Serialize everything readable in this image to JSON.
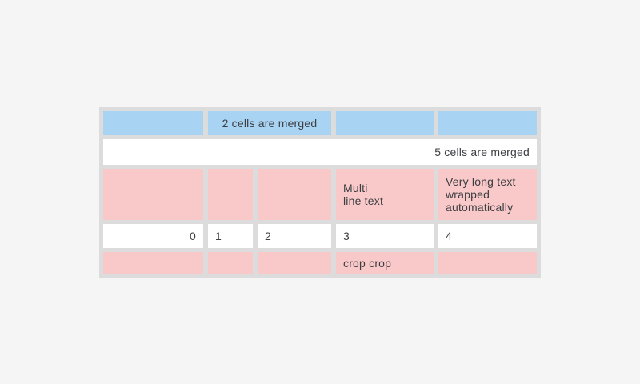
{
  "colors": {
    "page-bg": "#f5f5f5",
    "table-bg": "#dcdcdc",
    "cell-blue": "#a9d3f2",
    "cell-pink": "#f9c8c8",
    "cell-white": "#ffffff",
    "text": "#3b3e42"
  },
  "table": {
    "row1": {
      "merged_cell": "2 cells are merged"
    },
    "row2": {
      "merged_cell": "5 cells are merged"
    },
    "row3": {
      "col4": "Multi\nline text",
      "col5": "Very long text wrapped automatically"
    },
    "row4": {
      "col1": "0",
      "col2": "1",
      "col3": "2",
      "col4": "3",
      "col5": "4"
    },
    "row5": {
      "col4": "crop crop\ncrop crop"
    }
  }
}
